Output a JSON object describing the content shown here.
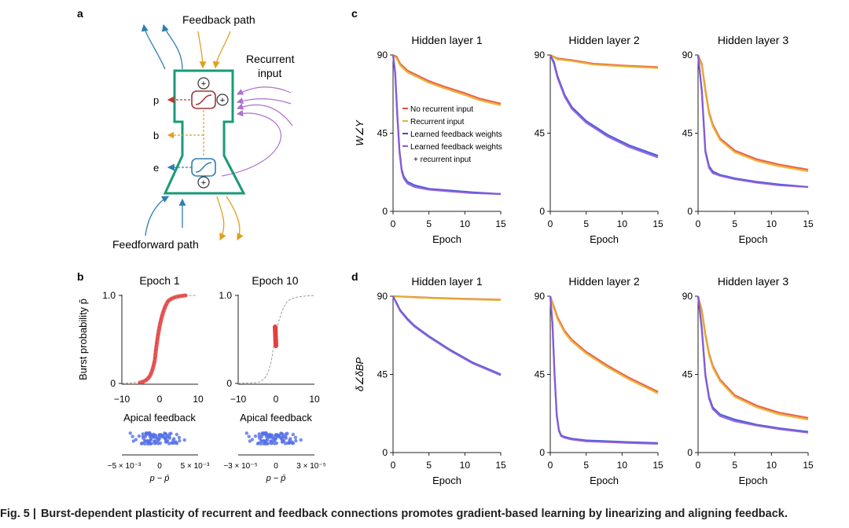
{
  "caption": {
    "label": "Fig. 5 |",
    "text": "Burst-dependent plasticity of recurrent and feedback connections promotes gradient-based learning by linearizing and aligning feedback."
  },
  "panel_a": {
    "label": "a",
    "feedback_path": "Feedback path",
    "recurrent_input_1": "Recurrent",
    "recurrent_input_2": "input",
    "feedforward_path": "Feedforward path",
    "out_p": "p",
    "out_b": "b",
    "out_e": "e",
    "colors": {
      "neuron": "#1a9a78",
      "red": "#c0392b",
      "orange": "#e0a020",
      "blue": "#2e7fb0",
      "purple": "#b070d0"
    }
  },
  "panel_b": {
    "label": "b",
    "ylabel": "Burst probability p̄",
    "plots": [
      {
        "title": "Epoch 1",
        "xlabel": "Apical feedback",
        "xticks": [
          "−10",
          "0",
          "10"
        ],
        "yticks": [
          "0",
          "1.0"
        ],
        "scatter_ticks": [
          "−5 × 10⁻³",
          "0",
          "5 × 10⁻³"
        ],
        "scatter_xlabel": "p − p̄"
      },
      {
        "title": "Epoch 10",
        "xlabel": "Apical feedback",
        "xticks": [
          "−10",
          "0",
          "10"
        ],
        "yticks": [
          "0",
          "1.0"
        ],
        "scatter_ticks": [
          "−3 × 10⁻⁵",
          "0",
          "3 × 10⁻⁵"
        ],
        "scatter_xlabel": "p − p̄"
      }
    ]
  },
  "chart_data": [
    {
      "panel": "c",
      "type": "line",
      "title": "Hidden layer 1",
      "xlabel": "Epoch",
      "ylabel": "W∠Y",
      "xlim": [
        0,
        15
      ],
      "ylim": [
        0,
        90
      ],
      "xticks": [
        "0",
        "5",
        "10",
        "15"
      ],
      "yticks": [
        "0",
        "45",
        "90"
      ],
      "legend": [
        "No recurrent input",
        "Recurrent input",
        "Learned feedback weights",
        "Learned feedback weights",
        "+ recurrent input"
      ],
      "series": [
        {
          "name": "No recurrent input",
          "color": "#e8543a",
          "x": [
            0,
            0.5,
            1,
            1.5,
            2,
            3,
            5,
            7,
            10,
            12,
            15
          ],
          "y": [
            90,
            89,
            85,
            83,
            81,
            79,
            75,
            72,
            68,
            65,
            62
          ]
        },
        {
          "name": "Recurrent input",
          "color": "#e6b32e",
          "x": [
            0,
            0.5,
            1,
            1.5,
            2,
            3,
            5,
            7,
            10,
            12,
            15
          ],
          "y": [
            90,
            88,
            84,
            82,
            80,
            78,
            74,
            71,
            67,
            64,
            61
          ]
        },
        {
          "name": "Learned feedback weights",
          "color": "#3a4fd8",
          "x": [
            0,
            0.3,
            0.6,
            0.9,
            1.2,
            1.5,
            2,
            3,
            5,
            8,
            11,
            15
          ],
          "y": [
            90,
            80,
            55,
            35,
            24,
            20,
            17,
            15,
            13,
            12,
            11,
            10
          ]
        },
        {
          "name": "Learned feedback weights + recurrent input",
          "color": "#8e5ad6",
          "x": [
            0,
            0.3,
            0.6,
            0.9,
            1.2,
            1.5,
            2,
            3,
            5,
            8,
            11,
            15
          ],
          "y": [
            90,
            79,
            54,
            34,
            23,
            19,
            16,
            14,
            12.5,
            11.5,
            10.5,
            10
          ]
        }
      ]
    },
    {
      "panel": "c",
      "type": "line",
      "title": "Hidden layer 2",
      "xlabel": "Epoch",
      "ylabel": "",
      "xlim": [
        0,
        15
      ],
      "ylim": [
        0,
        90
      ],
      "xticks": [
        "0",
        "5",
        "10",
        "15"
      ],
      "yticks": [
        "0",
        "45",
        "90"
      ],
      "series": [
        {
          "name": "No recurrent input",
          "color": "#e8543a",
          "x": [
            0,
            1,
            3,
            6,
            10,
            15
          ],
          "y": [
            90,
            88,
            87,
            85,
            84,
            83
          ]
        },
        {
          "name": "Recurrent input",
          "color": "#e6b32e",
          "x": [
            0,
            1,
            3,
            6,
            10,
            15
          ],
          "y": [
            90,
            87.5,
            86.5,
            84.5,
            83.5,
            82.5
          ]
        },
        {
          "name": "Learned feedback weights",
          "color": "#3a4fd8",
          "x": [
            0,
            0.5,
            1,
            2,
            3,
            5,
            8,
            11,
            15
          ],
          "y": [
            90,
            86,
            78,
            67,
            60,
            52,
            44,
            38,
            32
          ]
        },
        {
          "name": "Learned feedback weights + recurrent input",
          "color": "#8e5ad6",
          "x": [
            0,
            0.5,
            1,
            2,
            3,
            5,
            8,
            11,
            15
          ],
          "y": [
            90,
            85,
            77,
            66,
            59,
            51,
            43,
            37,
            31
          ]
        }
      ]
    },
    {
      "panel": "c",
      "type": "line",
      "title": "Hidden layer 3",
      "xlabel": "Epoch",
      "ylabel": "",
      "xlim": [
        0,
        15
      ],
      "ylim": [
        0,
        90
      ],
      "xticks": [
        "0",
        "5",
        "10",
        "15"
      ],
      "yticks": [
        "0",
        "45",
        "90"
      ],
      "series": [
        {
          "name": "No recurrent input",
          "color": "#e8543a",
          "x": [
            0,
            0.5,
            1,
            1.5,
            2,
            3,
            5,
            8,
            11,
            15
          ],
          "y": [
            90,
            85,
            70,
            57,
            50,
            42,
            35,
            30,
            27,
            24
          ]
        },
        {
          "name": "Recurrent input",
          "color": "#e6b32e",
          "x": [
            0,
            0.5,
            1,
            1.5,
            2,
            3,
            5,
            8,
            11,
            15
          ],
          "y": [
            90,
            84,
            69,
            56,
            49,
            41,
            34,
            29,
            26,
            23
          ]
        },
        {
          "name": "Learned feedback weights",
          "color": "#3a4fd8",
          "x": [
            0,
            0.5,
            1,
            1.5,
            2,
            3,
            5,
            8,
            11,
            15
          ],
          "y": [
            90,
            70,
            35,
            26,
            23,
            21,
            19,
            17,
            15.5,
            14
          ]
        },
        {
          "name": "Learned feedback weights + recurrent input",
          "color": "#8e5ad6",
          "x": [
            0,
            0.5,
            1,
            1.5,
            2,
            3,
            5,
            8,
            11,
            15
          ],
          "y": [
            90,
            69,
            34,
            25,
            22,
            20.5,
            18.5,
            16.5,
            15,
            14
          ]
        }
      ]
    },
    {
      "panel": "d",
      "type": "line",
      "title": "Hidden layer 1",
      "xlabel": "Epoch",
      "ylabel": "δ∠δBP",
      "xlim": [
        0,
        15
      ],
      "ylim": [
        0,
        90
      ],
      "xticks": [
        "0",
        "5",
        "10",
        "15"
      ],
      "yticks": [
        "0",
        "45",
        "90"
      ],
      "series": [
        {
          "name": "No recurrent input",
          "color": "#e8543a",
          "x": [
            0,
            3,
            6,
            10,
            15
          ],
          "y": [
            90,
            89.5,
            89,
            88.5,
            88
          ]
        },
        {
          "name": "Recurrent input",
          "color": "#e6b32e",
          "x": [
            0,
            3,
            6,
            10,
            15
          ],
          "y": [
            90,
            89.3,
            88.8,
            88.3,
            87.8
          ]
        },
        {
          "name": "Learned feedback weights",
          "color": "#3a4fd8",
          "x": [
            0,
            0.5,
            1,
            2,
            3,
            5,
            8,
            11,
            15
          ],
          "y": [
            90,
            86,
            82,
            77,
            73,
            67,
            59,
            52,
            45
          ]
        },
        {
          "name": "Learned feedback weights + recurrent input",
          "color": "#8e5ad6",
          "x": [
            0,
            0.5,
            1,
            2,
            3,
            5,
            8,
            11,
            15
          ],
          "y": [
            90,
            85.5,
            81.5,
            76.5,
            72.5,
            66.5,
            58.5,
            51.5,
            44.5
          ]
        }
      ]
    },
    {
      "panel": "d",
      "type": "line",
      "title": "Hidden layer 2",
      "xlabel": "Epoch",
      "ylabel": "",
      "xlim": [
        0,
        15
      ],
      "ylim": [
        0,
        90
      ],
      "xticks": [
        "0",
        "5",
        "10",
        "15"
      ],
      "yticks": [
        "0",
        "45",
        "90"
      ],
      "series": [
        {
          "name": "No recurrent input",
          "color": "#e8543a",
          "x": [
            0,
            0.5,
            1,
            2,
            3,
            5,
            8,
            11,
            15
          ],
          "y": [
            90,
            84,
            78,
            70,
            65,
            58,
            50,
            43,
            35
          ]
        },
        {
          "name": "Recurrent input",
          "color": "#e6b32e",
          "x": [
            0,
            0.5,
            1,
            2,
            3,
            5,
            8,
            11,
            15
          ],
          "y": [
            90,
            83,
            77,
            69,
            64,
            57,
            49,
            42,
            34
          ]
        },
        {
          "name": "Learned feedback weights",
          "color": "#3a4fd8",
          "x": [
            0,
            0.3,
            0.6,
            0.9,
            1.2,
            1.5,
            2,
            3,
            5,
            8,
            11,
            15
          ],
          "y": [
            90,
            75,
            45,
            22,
            13,
            10,
            9,
            8,
            7,
            6.5,
            6,
            5.5
          ]
        },
        {
          "name": "Learned feedback weights + recurrent input",
          "color": "#8e5ad6",
          "x": [
            0,
            0.3,
            0.6,
            0.9,
            1.2,
            1.5,
            2,
            3,
            5,
            8,
            11,
            15
          ],
          "y": [
            90,
            74,
            44,
            21,
            12.5,
            9.5,
            8.5,
            7.5,
            6.5,
            6,
            5.5,
            5
          ]
        }
      ]
    },
    {
      "panel": "d",
      "type": "line",
      "title": "Hidden layer 3",
      "xlabel": "Epoch",
      "ylabel": "",
      "xlim": [
        0,
        15
      ],
      "ylim": [
        0,
        90
      ],
      "xticks": [
        "0",
        "5",
        "10",
        "15"
      ],
      "yticks": [
        "0",
        "45",
        "90"
      ],
      "series": [
        {
          "name": "No recurrent input",
          "color": "#e8543a",
          "x": [
            0,
            0.5,
            1,
            1.5,
            2,
            3,
            5,
            8,
            11,
            15
          ],
          "y": [
            90,
            82,
            68,
            57,
            50,
            42,
            33,
            27,
            23,
            20
          ]
        },
        {
          "name": "Recurrent input",
          "color": "#e6b32e",
          "x": [
            0,
            0.5,
            1,
            1.5,
            2,
            3,
            5,
            8,
            11,
            15
          ],
          "y": [
            90,
            81,
            67,
            56,
            49,
            41,
            32,
            26,
            22,
            19
          ]
        },
        {
          "name": "Learned feedback weights",
          "color": "#3a4fd8",
          "x": [
            0,
            0.5,
            1,
            1.5,
            2,
            3,
            5,
            8,
            11,
            15
          ],
          "y": [
            90,
            72,
            45,
            32,
            26,
            22,
            19,
            16,
            14,
            12
          ]
        },
        {
          "name": "Learned feedback weights + recurrent input",
          "color": "#8e5ad6",
          "x": [
            0,
            0.5,
            1,
            1.5,
            2,
            3,
            5,
            8,
            11,
            15
          ],
          "y": [
            90,
            71,
            44,
            31,
            25,
            21,
            18,
            15.5,
            13.5,
            11.5
          ]
        }
      ]
    }
  ]
}
